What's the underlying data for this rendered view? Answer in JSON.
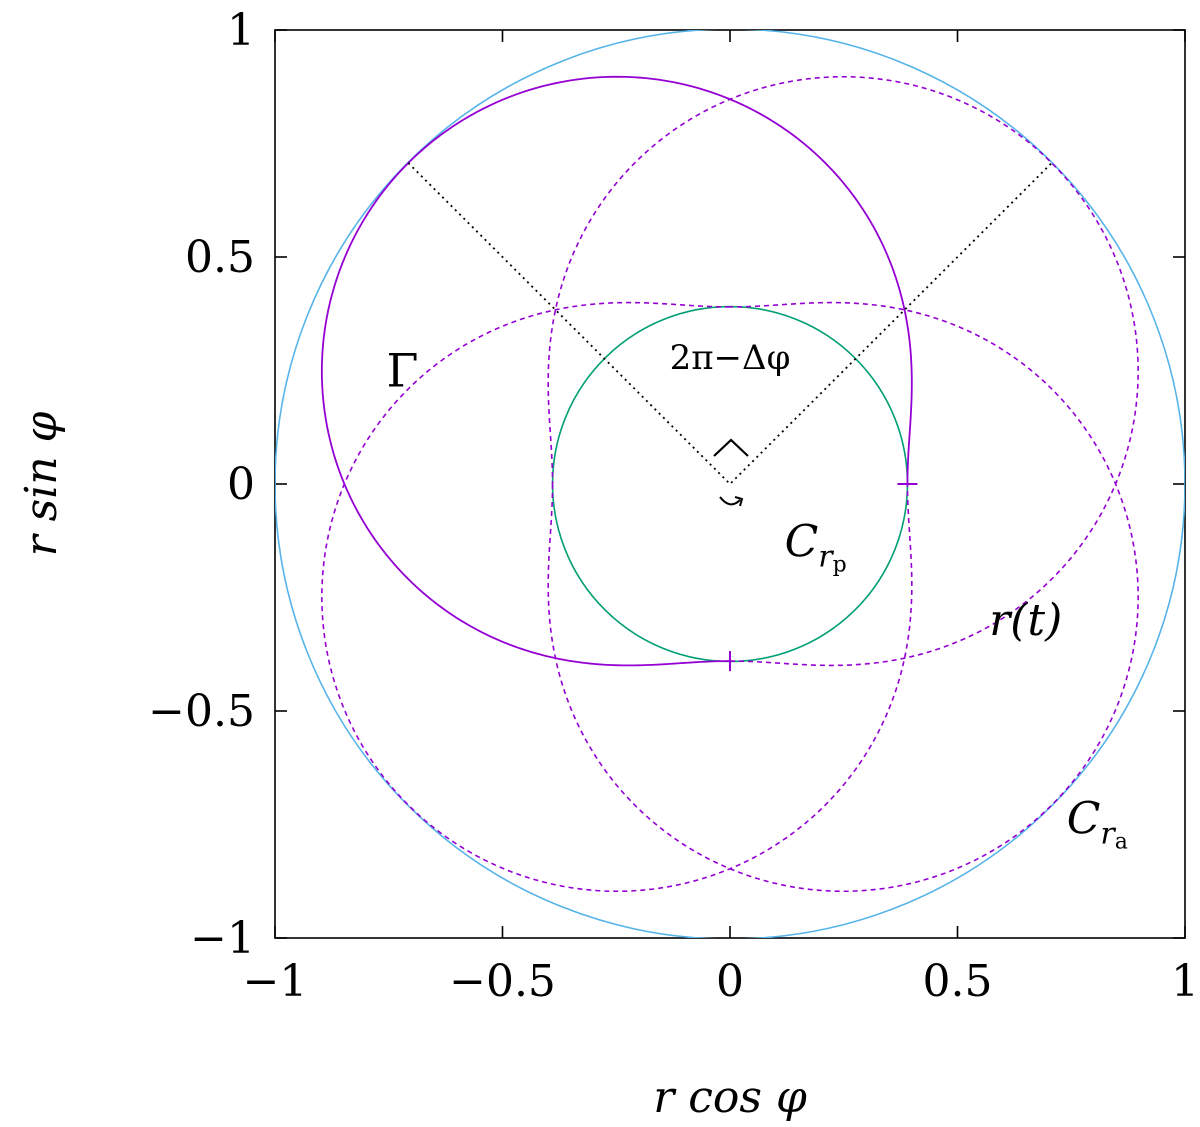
{
  "chart_data": {
    "type": "line",
    "xlabel": "r cos φ",
    "ylabel": "r sin φ",
    "xlim": [
      -1,
      1
    ],
    "ylim": [
      -1,
      1
    ],
    "xticks": [
      {
        "value": -1,
        "label": "−1"
      },
      {
        "value": -0.5,
        "label": "−0.5"
      },
      {
        "value": 0,
        "label": "0"
      },
      {
        "value": 0.5,
        "label": "0.5"
      },
      {
        "value": 1,
        "label": "1"
      }
    ],
    "yticks": [
      {
        "value": -1,
        "label": "−1"
      },
      {
        "value": -0.5,
        "label": "−0.5"
      },
      {
        "value": 0,
        "label": "0"
      },
      {
        "value": 0.5,
        "label": "0.5"
      },
      {
        "value": 1,
        "label": "1"
      }
    ],
    "grid": false,
    "legend": "none",
    "params": {
      "r_p": 0.39,
      "r_a": 1.0,
      "periapsis_angle_deg": 0,
      "apoapsis_angles_deg": [
        135,
        45,
        225,
        315
      ],
      "apsidal_step_deg": 270
    },
    "series": [
      {
        "name": "C_{r_a}",
        "label_base": "C",
        "label_sub": "r",
        "label_subsub": "a",
        "color": "#56b4e9",
        "style": "solid",
        "kind": "circle",
        "radius": 1.0
      },
      {
        "name": "C_{r_p}",
        "label_base": "C",
        "label_sub": "r",
        "label_subsub": "p",
        "color": "#009e73",
        "style": "solid",
        "kind": "circle",
        "radius": 0.39
      },
      {
        "name": "Γ",
        "color": "#9400d3",
        "style": "solid",
        "kind": "orbit_arc",
        "from_deg": 0,
        "to_deg": 270,
        "periapsis_deg": 0
      },
      {
        "name": "r(t)",
        "color": "#9400d3",
        "style": "dashed",
        "kind": "orbit_arcs",
        "arcs": [
          {
            "from_deg": 270,
            "to_deg": 540,
            "periapsis_deg": 270
          },
          {
            "from_deg": 540,
            "to_deg": 810,
            "periapsis_deg": 540
          },
          {
            "from_deg": 810,
            "to_deg": 1080,
            "periapsis_deg": 810
          }
        ]
      }
    ],
    "apsides_lines": {
      "color": "#000000",
      "style": "dotted",
      "points": [
        [
          -0.7071,
          0.7071
        ],
        [
          0,
          0
        ],
        [
          0.7071,
          0.7071
        ]
      ]
    },
    "markers": [
      {
        "x": 0.39,
        "y": 0,
        "orientation": "horizontal",
        "color": "#9400d3"
      },
      {
        "x": 0,
        "y": -0.39,
        "orientation": "vertical",
        "color": "#9400d3"
      }
    ],
    "annotations": [
      {
        "text": "2π−Δφ",
        "x": 0,
        "y": 0.28,
        "color": "#000000"
      },
      {
        "text": "Γ",
        "x": -0.72,
        "y": 0.25,
        "color": "#9400d3"
      },
      {
        "text": "r(t)",
        "x": 0.65,
        "y": -0.3,
        "color": "#9400d3"
      }
    ]
  }
}
